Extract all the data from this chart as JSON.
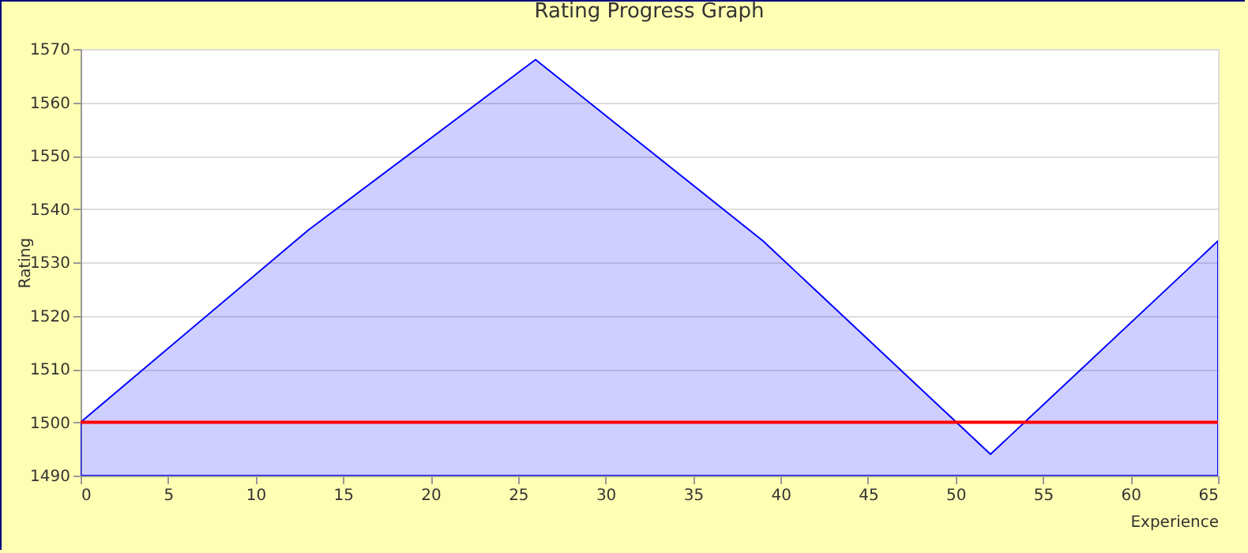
{
  "chart_data": {
    "type": "area",
    "title": "Rating Progress Graph",
    "xlabel": "Experience",
    "ylabel": "Rating",
    "x": [
      0,
      13,
      26,
      39,
      52,
      65
    ],
    "series": [
      {
        "color": "#0000ff",
        "values": [
          1500,
          1536,
          1568,
          1534,
          1494,
          1534
        ]
      }
    ],
    "xlim": [
      0,
      65
    ],
    "xticks": [
      0,
      5,
      10,
      15,
      20,
      25,
      30,
      35,
      40,
      45,
      50,
      55,
      60,
      65
    ],
    "ylim": [
      1490,
      1570
    ],
    "yticks": [
      1490,
      1500,
      1510,
      1520,
      1530,
      1540,
      1550,
      1560,
      1570
    ],
    "ref_lines": [
      {
        "axis": "y",
        "value": 1500,
        "color": "#ff0000"
      }
    ],
    "grid": "y"
  }
}
